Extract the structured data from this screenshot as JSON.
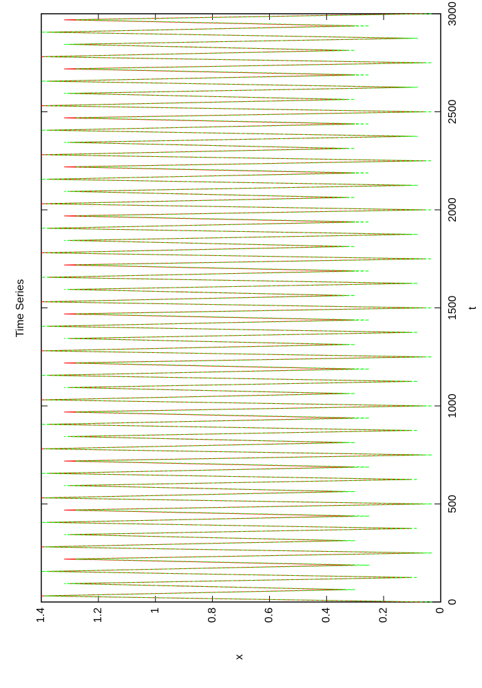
{
  "chart_data": {
    "type": "line",
    "title": "Time Series",
    "x_label": "t",
    "y_label": "x",
    "x": [
      0,
      31,
      63,
      94,
      125,
      156,
      188,
      219,
      250,
      281,
      313,
      344,
      375,
      406,
      438,
      469,
      500,
      531,
      563,
      594,
      625,
      656,
      688,
      719,
      750,
      781,
      813,
      844,
      875,
      906,
      938,
      969,
      1000,
      1031,
      1063,
      1094,
      1125,
      1156,
      1188,
      1219,
      1250,
      1281,
      1313,
      1344,
      1375,
      1406,
      1438,
      1469,
      1500,
      1531,
      1563,
      1594,
      1625,
      1656,
      1688,
      1719,
      1750,
      1781,
      1813,
      1844,
      1875,
      1906,
      1938,
      1969,
      2000,
      2031,
      2063,
      2094,
      2125,
      2156,
      2188,
      2219,
      2250,
      2281,
      2313,
      2344,
      2375,
      2406,
      2438,
      2469,
      2500,
      2531,
      2563,
      2594,
      2625,
      2656,
      2688,
      2719,
      2750,
      2781,
      2813,
      2844,
      2875,
      2906,
      2938,
      2969,
      3000
    ],
    "series": [
      {
        "color": "#ff0000",
        "dash": false,
        "values": [
          0.06,
          1.4,
          0.33,
          1.3,
          0.1,
          1.38,
          0.3,
          1.32,
          0.06,
          1.4,
          0.33,
          1.3,
          0.1,
          1.38,
          0.3,
          1.32,
          0.06,
          1.4,
          0.33,
          1.3,
          0.1,
          1.38,
          0.3,
          1.32,
          0.06,
          1.4,
          0.33,
          1.3,
          0.1,
          1.38,
          0.3,
          1.32,
          0.06,
          1.4,
          0.33,
          1.3,
          0.1,
          1.38,
          0.3,
          1.32,
          0.06,
          1.4,
          0.33,
          1.3,
          0.1,
          1.38,
          0.3,
          1.32,
          0.06,
          1.4,
          0.33,
          1.3,
          0.1,
          1.38,
          0.3,
          1.32,
          0.06,
          1.4,
          0.33,
          1.3,
          0.1,
          1.38,
          0.3,
          1.32,
          0.06,
          1.4,
          0.33,
          1.3,
          0.1,
          1.38,
          0.3,
          1.32,
          0.06,
          1.4,
          0.33,
          1.3,
          0.1,
          1.38,
          0.3,
          1.32,
          0.06,
          1.4,
          0.33,
          1.3,
          0.1,
          1.38,
          0.3,
          1.32,
          0.06,
          1.4,
          0.33,
          1.3,
          0.1,
          1.38,
          0.3,
          1.32,
          0.06
        ]
      },
      {
        "color": "#00ff00",
        "dash": true,
        "values": [
          0.03,
          1.39,
          0.3,
          1.32,
          0.08,
          1.4,
          0.25,
          1.28,
          0.03,
          1.39,
          0.3,
          1.32,
          0.08,
          1.4,
          0.25,
          1.28,
          0.03,
          1.39,
          0.3,
          1.32,
          0.08,
          1.4,
          0.25,
          1.28,
          0.03,
          1.39,
          0.3,
          1.32,
          0.08,
          1.4,
          0.25,
          1.28,
          0.03,
          1.39,
          0.3,
          1.32,
          0.08,
          1.4,
          0.25,
          1.28,
          0.03,
          1.39,
          0.3,
          1.32,
          0.08,
          1.4,
          0.25,
          1.28,
          0.03,
          1.39,
          0.3,
          1.32,
          0.08,
          1.4,
          0.25,
          1.28,
          0.03,
          1.39,
          0.3,
          1.32,
          0.08,
          1.4,
          0.25,
          1.28,
          0.03,
          1.39,
          0.3,
          1.32,
          0.08,
          1.4,
          0.25,
          1.28,
          0.03,
          1.39,
          0.3,
          1.32,
          0.08,
          1.4,
          0.25,
          1.28,
          0.03,
          1.39,
          0.3,
          1.32,
          0.08,
          1.4,
          0.25,
          1.28,
          0.03,
          1.39,
          0.3,
          1.32,
          0.08,
          1.4,
          0.25,
          1.28,
          0.03
        ]
      }
    ],
    "xlim": [
      0,
      3000
    ],
    "xticks": [
      0,
      500,
      1000,
      1500,
      2000,
      2500,
      3000
    ],
    "ylim": [
      0,
      1.4
    ],
    "yticks": [
      0,
      0.2,
      0.4,
      0.6,
      0.8,
      1,
      1.2,
      1.4
    ]
  }
}
